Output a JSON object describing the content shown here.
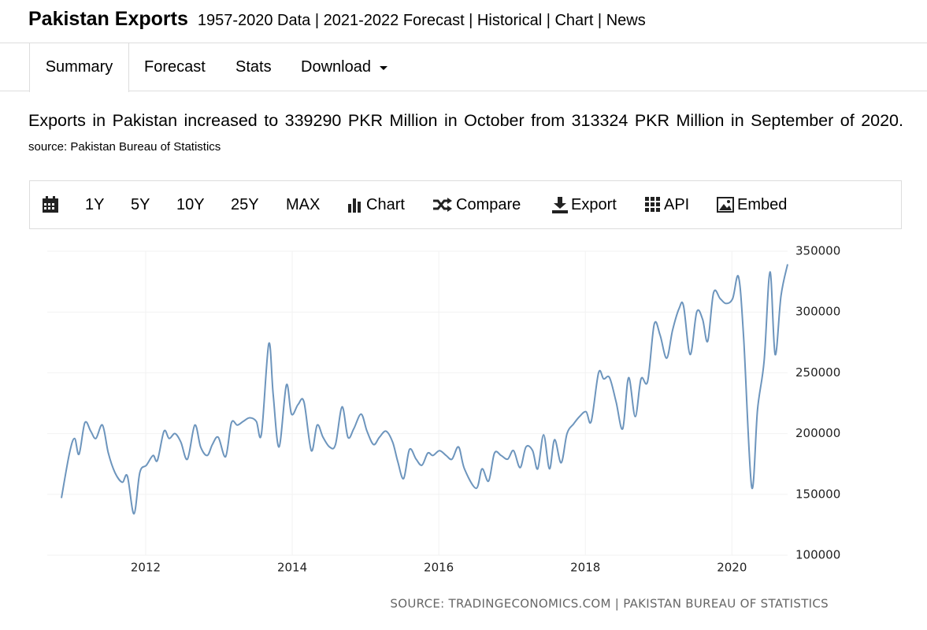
{
  "header": {
    "title": "Pakistan Exports",
    "subtitle": "1957-2020 Data | 2021-2022 Forecast | Historical | Chart | News"
  },
  "tabs": [
    "Summary",
    "Forecast",
    "Stats",
    "Download"
  ],
  "summary": {
    "text": "Exports in Pakistan increased to 339290 PKR Million in October from 313324 PKR Million in September of 2020.",
    "source": "source: Pakistan Bureau of Statistics"
  },
  "toolbar": [
    "1Y",
    "5Y",
    "10Y",
    "25Y",
    "MAX",
    "Chart",
    "Compare",
    "Export",
    "API",
    "Embed"
  ],
  "chart_data": {
    "type": "line",
    "color": "#6d95bd",
    "grid": true,
    "source": "SOURCE: TRADINGECONOMICS.COM | PAKISTAN BUREAU OF STATISTICS",
    "x": [
      2010.85,
      2010.96,
      2011.03,
      2011.09,
      2011.17,
      2011.25,
      2011.32,
      2011.41,
      2011.49,
      2011.58,
      2011.68,
      2011.75,
      2011.84,
      2011.92,
      2012.01,
      2012.1,
      2012.16,
      2012.25,
      2012.32,
      2012.4,
      2012.48,
      2012.57,
      2012.67,
      2012.75,
      2012.84,
      2012.91,
      2012.99,
      2013.09,
      2013.17,
      2013.25,
      2013.33,
      2013.42,
      2013.51,
      2013.58,
      2013.68,
      2013.74,
      2013.82,
      2013.92,
      2013.99,
      2014.08,
      2014.16,
      2014.26,
      2014.34,
      2014.42,
      2014.51,
      2014.59,
      2014.68,
      2014.76,
      2014.84,
      2014.94,
      2015.02,
      2015.11,
      2015.19,
      2015.28,
      2015.37,
      2015.44,
      2015.52,
      2015.6,
      2015.69,
      2015.77,
      2015.85,
      2015.92,
      2016.01,
      2016.1,
      2016.18,
      2016.27,
      2016.35,
      2016.51,
      2016.59,
      2016.68,
      2016.76,
      2016.85,
      2016.94,
      2017.02,
      2017.11,
      2017.19,
      2017.28,
      2017.35,
      2017.43,
      2017.51,
      2017.58,
      2017.67,
      2017.75,
      2017.84,
      2017.92,
      2018.01,
      2018.08,
      2018.18,
      2018.25,
      2018.33,
      2018.42,
      2018.51,
      2018.59,
      2018.68,
      2018.76,
      2018.85,
      2018.94,
      2019.02,
      2019.11,
      2019.19,
      2019.28,
      2019.34,
      2019.43,
      2019.52,
      2019.6,
      2019.67,
      2019.75,
      2019.84,
      2019.92,
      2020.01,
      2020.09,
      2020.16,
      2020.27,
      2020.35,
      2020.44,
      2020.52,
      2020.59,
      2020.67,
      2020.76
    ],
    "values": [
      147000,
      184000,
      196000,
      183000,
      209000,
      202000,
      196000,
      207000,
      184000,
      168000,
      160000,
      165000,
      134000,
      168000,
      174000,
      182000,
      178000,
      202000,
      196000,
      200000,
      193000,
      179000,
      207000,
      189000,
      182000,
      191000,
      197000,
      181000,
      209000,
      207000,
      210000,
      213000,
      210000,
      200000,
      274000,
      232000,
      189000,
      240000,
      216000,
      224000,
      226000,
      186000,
      207000,
      197000,
      189000,
      191000,
      222000,
      197000,
      204000,
      216000,
      202000,
      191000,
      197000,
      202000,
      193000,
      177000,
      163000,
      187000,
      179000,
      174000,
      184000,
      182000,
      186000,
      182000,
      179000,
      189000,
      171000,
      155000,
      171000,
      161000,
      184000,
      182000,
      179000,
      186000,
      172000,
      189000,
      186000,
      171000,
      199000,
      171000,
      195000,
      176000,
      200000,
      208000,
      214000,
      218000,
      210000,
      250000,
      245000,
      246000,
      226000,
      204000,
      246000,
      214000,
      245000,
      243000,
      290000,
      281000,
      262000,
      285000,
      303000,
      305000,
      265000,
      300000,
      294000,
      276000,
      316000,
      311000,
      307000,
      311000,
      329000,
      279000,
      156000,
      220000,
      260000,
      333000,
      265000,
      313324,
      339290
    ],
    "xlim": [
      2010.85,
      2020.76
    ],
    "xticks": [
      2012,
      2014,
      2016,
      2018,
      2020
    ],
    "ylim": [
      100000,
      350000
    ],
    "yticks": [
      100000,
      150000,
      200000,
      250000,
      300000,
      350000
    ]
  }
}
